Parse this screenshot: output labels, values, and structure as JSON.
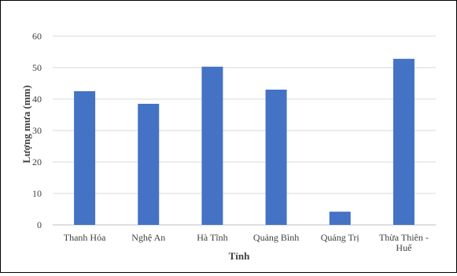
{
  "chart_data": {
    "type": "bar",
    "categories": [
      "Thanh Hóa",
      "Nghệ An",
      "Hà Tĩnh",
      "Quảng Bình",
      "Quảng Trị",
      "Thừa Thiên - Huế"
    ],
    "category_lines": [
      [
        "Thanh Hóa"
      ],
      [
        "Nghệ An"
      ],
      [
        "Hà Tĩnh"
      ],
      [
        "Quảng Bình"
      ],
      [
        "Quảng Trị"
      ],
      [
        "Thừa Thiên -",
        "Huế"
      ]
    ],
    "values": [
      42.5,
      38.5,
      50.3,
      43.0,
      4.2,
      52.8
    ],
    "xlabel": "Tỉnh",
    "ylabel": "Lượng mưa (mm)",
    "ylim": [
      0,
      60
    ],
    "yticks": [
      0,
      10,
      20,
      30,
      40,
      50,
      60
    ],
    "grid": true,
    "bar_color": "#4472C4",
    "grid_color": "#D9D9D9",
    "axis_color": "#BFBFBF"
  }
}
